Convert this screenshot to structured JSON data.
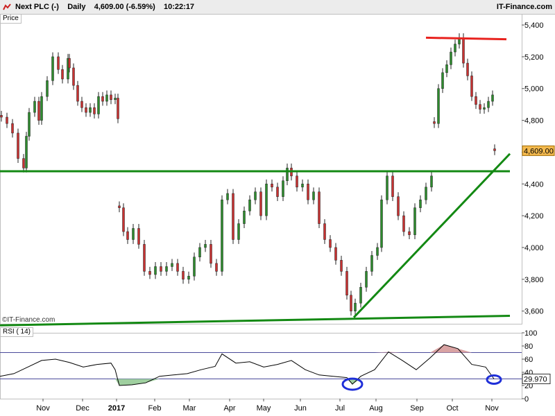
{
  "header": {
    "symbol": "Next PLC (-)",
    "period": "Daily",
    "price_change": "4,609.00 (-6.59%)",
    "time": "10:22:17",
    "brand": "IT-Finance.com"
  },
  "panels": {
    "price_label": "Price",
    "rsi_label": "RSI ( 14)",
    "watermark": "©IT-Finance.com"
  },
  "chart_data": [
    {
      "type": "candlestick",
      "title": "Next PLC (-) Daily",
      "x_tick_labels": [
        "Nov",
        "Dec",
        "2017",
        "Feb",
        "Mar",
        "Apr",
        "May",
        "Jun",
        "Jul",
        "Aug",
        "Sep",
        "Oct",
        "Nov"
      ],
      "y_tick_labels": [
        "3,600",
        "3,800",
        "4,000",
        "4,200",
        "4,400",
        "4,600",
        "4,800",
        "5,000",
        "5,200",
        "5,400"
      ],
      "ylim": [
        3520,
        5470
      ],
      "last_price_label": "4,609.00",
      "last_price": 4609,
      "series": [
        {
          "x": [
            0,
            8,
            16,
            24,
            32,
            36,
            40,
            48,
            54,
            58,
            66,
            74,
            82,
            88,
            96,
            98,
            104,
            110,
            116,
            122,
            128,
            134,
            140,
            146,
            152,
            158,
            164,
            168
          ],
          "y": [
            4820,
            4780,
            4720,
            4560,
            4500,
            4700,
            4850,
            4920,
            4800,
            4950,
            5050,
            5200,
            5120,
            5060,
            5190,
            5130,
            5020,
            4920,
            4880,
            4850,
            4880,
            4840,
            4950,
            4920,
            4960,
            4930,
            4940,
            4810
          ]
        },
        {
          "x": [
            170,
            176,
            182,
            190,
            198,
            206,
            214,
            222,
            230,
            238,
            246,
            254,
            262,
            270,
            278,
            286,
            294,
            302,
            310,
            318,
            326,
            334,
            342,
            350,
            358,
            366,
            374,
            382,
            390,
            398,
            406,
            412,
            418,
            426,
            434,
            442,
            450,
            458,
            466,
            474,
            482,
            490,
            498,
            504,
            510,
            518,
            526,
            534,
            542,
            548,
            556,
            564,
            572,
            580,
            588,
            596,
            604,
            612,
            620
          ],
          "y": [
            4250,
            4100,
            4050,
            4120,
            4020,
            3850,
            3830,
            3880,
            3850,
            3880,
            3900,
            3850,
            3800,
            3820,
            3940,
            4000,
            4020,
            3900,
            3850,
            4300,
            4340,
            4050,
            4150,
            4230,
            4300,
            4350,
            4200,
            4400,
            4380,
            4320,
            4420,
            4500,
            4450,
            4380,
            4400,
            4300,
            4350,
            4150,
            4050,
            4000,
            3920,
            3850,
            3700,
            3600,
            3650,
            3750,
            3850,
            3950,
            4000,
            4300,
            4450,
            4320,
            4200,
            4100,
            4080,
            4250,
            4300,
            4380,
            4450
          ]
        },
        {
          "x": [
            624,
            630,
            636,
            642,
            648,
            654,
            660,
            666,
            672,
            678,
            684,
            690,
            696,
            702,
            708
          ],
          "y": [
            4780,
            5000,
            5100,
            5150,
            5230,
            5280,
            5320,
            5160,
            5080,
            4950,
            4900,
            4870,
            4880,
            4920,
            4960
          ]
        },
        {
          "x": [
            711
          ],
          "y": [
            4609
          ]
        }
      ],
      "trendlines": [
        {
          "color": "#138913",
          "from": [
            "start",
            4480
          ],
          "to": [
            "end",
            4480
          ]
        },
        {
          "color": "#138913",
          "from": [
            "start",
            3510
          ],
          "to": [
            "end",
            3570
          ]
        },
        {
          "color": "#138913",
          "from": [
            "Jul",
            3560
          ],
          "to": [
            "end",
            4590
          ]
        },
        {
          "color": "#e8221e",
          "from": [
            "Sep",
            5320
          ],
          "to": [
            "Oct",
            5310
          ]
        }
      ],
      "up_color": "#2e8b2e",
      "down_color": "#c83232"
    },
    {
      "type": "line",
      "title": "RSI ( 14)",
      "y_tick_labels": [
        "0",
        "20",
        "40",
        "60",
        "80",
        "100"
      ],
      "ylim": [
        0,
        100
      ],
      "levels": [
        30,
        70
      ],
      "last_value_label": "29.970",
      "x": [
        0,
        20,
        40,
        60,
        80,
        100,
        120,
        140,
        160,
        166,
        172,
        190,
        210,
        230,
        250,
        270,
        290,
        310,
        320,
        340,
        360,
        380,
        400,
        420,
        440,
        460,
        480,
        500,
        508,
        520,
        540,
        560,
        580,
        600,
        620,
        640,
        660,
        680,
        700,
        712
      ],
      "y": [
        34,
        38,
        48,
        58,
        60,
        55,
        48,
        52,
        54,
        44,
        20,
        21,
        24,
        34,
        36,
        38,
        44,
        49,
        68,
        54,
        56,
        48,
        52,
        58,
        44,
        36,
        34,
        32,
        22,
        34,
        44,
        71,
        58,
        44,
        62,
        82,
        76,
        52,
        48,
        30
      ],
      "highlights": [
        "overbought Oct",
        "circle Jul",
        "circle Nov"
      ]
    }
  ],
  "colors": {
    "rsi_line": "#000000",
    "overbought_fill": "#d9a3a3",
    "oversold_fill": "#9fcf9f",
    "level_line": "#4a4a9a",
    "circle": "#1f2fd8"
  }
}
